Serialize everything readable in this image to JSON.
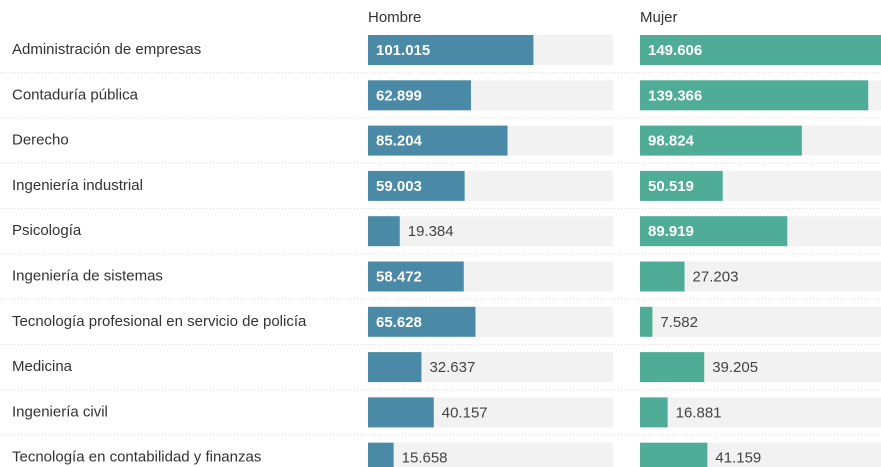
{
  "chart_data": {
    "type": "bar",
    "categories": [
      "Administración de empresas",
      "Contaduría pública",
      "Derecho",
      "Ingeniería industrial",
      "Psicología",
      "Ingeniería de sistemas",
      "Tecnología profesional en servicio de policía",
      "Medicina",
      "Ingeniería civil",
      "Tecnología en contabilidad y finanzas"
    ],
    "series": [
      {
        "name": "Hombre",
        "color": "#4a8aa6",
        "values": [
          101015,
          62899,
          85204,
          59003,
          19384,
          58472,
          65628,
          32637,
          40157,
          15658
        ],
        "value_labels": [
          "101.015",
          "62.899",
          "85.204",
          "59.003",
          "19.384",
          "58.472",
          "65.628",
          "32.637",
          "40.157",
          "15.658"
        ]
      },
      {
        "name": "Mujer",
        "color": "#4fad97",
        "values": [
          149606,
          139366,
          98824,
          50519,
          89919,
          27203,
          7582,
          39205,
          16881,
          41159
        ],
        "value_labels": [
          "149.606",
          "139.366",
          "98.824",
          "50.519",
          "89.919",
          "27.203",
          "7.582",
          "39.205",
          "16.881",
          "41.159"
        ]
      }
    ]
  }
}
